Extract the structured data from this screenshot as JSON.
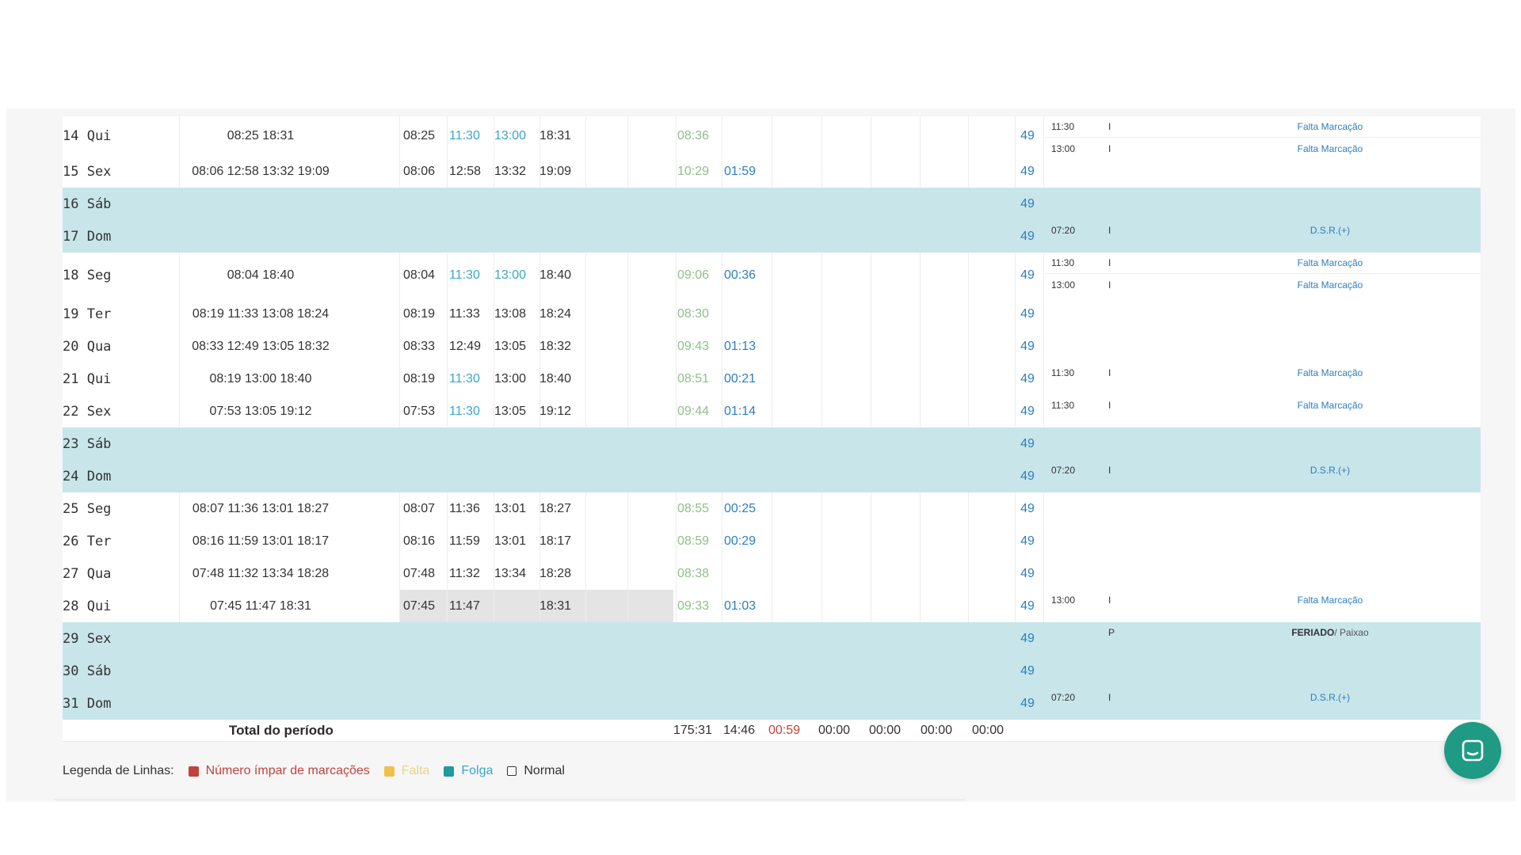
{
  "rows": [
    {
      "type": "normal",
      "day": "14 Qui",
      "orig": "08:25 18:31",
      "p": [
        [
          "08:25",
          "dark"
        ],
        [
          "11:30",
          "teal"
        ],
        [
          "13:00",
          "teal"
        ],
        [
          "18:31",
          "dark"
        ]
      ],
      "h": [
        [
          "08:36",
          "green"
        ],
        [
          "",
          ""
        ]
      ],
      "n49": "49",
      "subs": [
        {
          "time": "11:30",
          "code": "I",
          "desc": "Falta Marcação"
        },
        {
          "time": "13:00",
          "code": "I",
          "desc": "Falta Marcação"
        }
      ]
    },
    {
      "type": "normal",
      "day": "15 Sex",
      "orig": "08:06 12:58 13:32 19:09",
      "p": [
        [
          "08:06",
          "dark"
        ],
        [
          "12:58",
          "dark"
        ],
        [
          "13:32",
          "dark"
        ],
        [
          "19:09",
          "dark"
        ]
      ],
      "h": [
        [
          "10:29",
          "green"
        ],
        [
          "01:59",
          "blue"
        ]
      ],
      "n49": "49",
      "subs": []
    },
    {
      "type": "folga",
      "day": "16 Sáb",
      "orig": "",
      "p": [],
      "h": [],
      "n49": "49",
      "subs": []
    },
    {
      "type": "folga",
      "day": "17 Dom",
      "orig": "",
      "p": [],
      "h": [],
      "n49": "49",
      "subs": [
        {
          "time": "07:20",
          "code": "I",
          "desc": "D.S.R.(+)"
        }
      ]
    },
    {
      "type": "normal",
      "day": "18 Seg",
      "orig": "08:04 18:40",
      "p": [
        [
          "08:04",
          "dark"
        ],
        [
          "11:30",
          "teal"
        ],
        [
          "13:00",
          "teal"
        ],
        [
          "18:40",
          "dark"
        ]
      ],
      "h": [
        [
          "09:06",
          "green"
        ],
        [
          "00:36",
          "blue"
        ]
      ],
      "n49": "49",
      "subs": [
        {
          "time": "11:30",
          "code": "I",
          "desc": "Falta Marcação"
        },
        {
          "time": "13:00",
          "code": "I",
          "desc": "Falta Marcação"
        }
      ]
    },
    {
      "type": "normal",
      "day": "19 Ter",
      "orig": "08:19 11:33 13:08 18:24",
      "p": [
        [
          "08:19",
          "dark"
        ],
        [
          "11:33",
          "dark"
        ],
        [
          "13:08",
          "dark"
        ],
        [
          "18:24",
          "dark"
        ]
      ],
      "h": [
        [
          "08:30",
          "green"
        ],
        [
          "",
          ""
        ]
      ],
      "n49": "49",
      "subs": []
    },
    {
      "type": "normal",
      "day": "20 Qua",
      "orig": "08:33 12:49 13:05 18:32",
      "p": [
        [
          "08:33",
          "dark"
        ],
        [
          "12:49",
          "dark"
        ],
        [
          "13:05",
          "dark"
        ],
        [
          "18:32",
          "dark"
        ]
      ],
      "h": [
        [
          "09:43",
          "green"
        ],
        [
          "01:13",
          "blue"
        ]
      ],
      "n49": "49",
      "subs": []
    },
    {
      "type": "normal",
      "day": "21 Qui",
      "orig": "08:19 13:00 18:40",
      "p": [
        [
          "08:19",
          "dark"
        ],
        [
          "11:30",
          "teal"
        ],
        [
          "13:00",
          "dark"
        ],
        [
          "18:40",
          "dark"
        ]
      ],
      "h": [
        [
          "08:51",
          "green"
        ],
        [
          "00:21",
          "blue"
        ]
      ],
      "n49": "49",
      "subs": [
        {
          "time": "11:30",
          "code": "I",
          "desc": "Falta Marcação"
        }
      ]
    },
    {
      "type": "normal",
      "day": "22 Sex",
      "orig": "07:53 13:05 19:12",
      "p": [
        [
          "07:53",
          "dark"
        ],
        [
          "11:30",
          "teal"
        ],
        [
          "13:05",
          "dark"
        ],
        [
          "19:12",
          "dark"
        ]
      ],
      "h": [
        [
          "09:44",
          "green"
        ],
        [
          "01:14",
          "blue"
        ]
      ],
      "n49": "49",
      "subs": [
        {
          "time": "11:30",
          "code": "I",
          "desc": "Falta Marcação"
        }
      ]
    },
    {
      "type": "folga",
      "day": "23 Sáb",
      "orig": "",
      "p": [],
      "h": [],
      "n49": "49",
      "subs": []
    },
    {
      "type": "folga",
      "day": "24 Dom",
      "orig": "",
      "p": [],
      "h": [],
      "n49": "49",
      "subs": [
        {
          "time": "07:20",
          "code": "I",
          "desc": "D.S.R.(+)"
        }
      ]
    },
    {
      "type": "normal",
      "day": "25 Seg",
      "orig": "08:07 11:36 13:01 18:27",
      "p": [
        [
          "08:07",
          "dark"
        ],
        [
          "11:36",
          "dark"
        ],
        [
          "13:01",
          "dark"
        ],
        [
          "18:27",
          "dark"
        ]
      ],
      "h": [
        [
          "08:55",
          "green"
        ],
        [
          "00:25",
          "blue"
        ]
      ],
      "n49": "49",
      "subs": []
    },
    {
      "type": "normal",
      "day": "26 Ter",
      "orig": "08:16 11:59 13:01 18:17",
      "p": [
        [
          "08:16",
          "dark"
        ],
        [
          "11:59",
          "dark"
        ],
        [
          "13:01",
          "dark"
        ],
        [
          "18:17",
          "dark"
        ]
      ],
      "h": [
        [
          "08:59",
          "green"
        ],
        [
          "00:29",
          "blue"
        ]
      ],
      "n49": "49",
      "subs": []
    },
    {
      "type": "normal",
      "day": "27 Qua",
      "orig": "07:48 11:32 13:34 18:28",
      "p": [
        [
          "07:48",
          "dark"
        ],
        [
          "11:32",
          "dark"
        ],
        [
          "13:34",
          "dark"
        ],
        [
          "18:28",
          "dark"
        ]
      ],
      "h": [
        [
          "08:38",
          "green"
        ],
        [
          "",
          ""
        ]
      ],
      "n49": "49",
      "subs": []
    },
    {
      "type": "normal",
      "day": "28 Qui",
      "orig": "07:45 11:47 18:31",
      "p": [
        [
          "07:45",
          "dark"
        ],
        [
          "11:47",
          "dark"
        ],
        [
          "",
          "dark"
        ],
        [
          "18:31",
          "dark"
        ]
      ],
      "h": [
        [
          "09:33",
          "green"
        ],
        [
          "01:03",
          "blue"
        ]
      ],
      "n49": "49",
      "highlight": true,
      "subs": [
        {
          "time": "13:00",
          "code": "I",
          "desc": "Falta Marcação"
        }
      ]
    },
    {
      "type": "folga",
      "day": "29 Sex",
      "orig": "",
      "p": [],
      "h": [],
      "n49": "49",
      "subs": [
        {
          "time": "",
          "code": "P",
          "desc": "FERIADO",
          "desc2": " / Paixao",
          "bold": true
        }
      ]
    },
    {
      "type": "folga",
      "day": "30 Sáb",
      "orig": "",
      "p": [],
      "h": [],
      "n49": "49",
      "subs": []
    },
    {
      "type": "folga",
      "day": "31 Dom",
      "orig": "",
      "p": [],
      "h": [],
      "n49": "49",
      "subs": [
        {
          "time": "07:20",
          "code": "I",
          "desc": "D.S.R.(+)"
        }
      ]
    }
  ],
  "total": {
    "label": "Total do período",
    "values": [
      [
        "175:31",
        "dark"
      ],
      [
        "14:46",
        "dark"
      ],
      [
        "00:59",
        "red"
      ],
      [
        "00:00",
        "dark"
      ],
      [
        "00:00",
        "dark"
      ],
      [
        "00:00",
        "dark"
      ],
      [
        "00:00",
        "dark"
      ]
    ]
  },
  "legend": {
    "title": "Legenda de Linhas:",
    "items": [
      {
        "label": "Número ímpar de marcações",
        "color": "#c0443e",
        "text_color": "#c0443e"
      },
      {
        "label": "Falta",
        "color": "#f0c04a",
        "text_color": "#e8d48a"
      },
      {
        "label": "Folga",
        "color": "#1f9aa0",
        "text_color": "#3aa7c7"
      },
      {
        "label": "Normal",
        "color": "#ffffff",
        "text_color": "#333333"
      }
    ]
  },
  "chat_icon": "chat-bubble-icon"
}
